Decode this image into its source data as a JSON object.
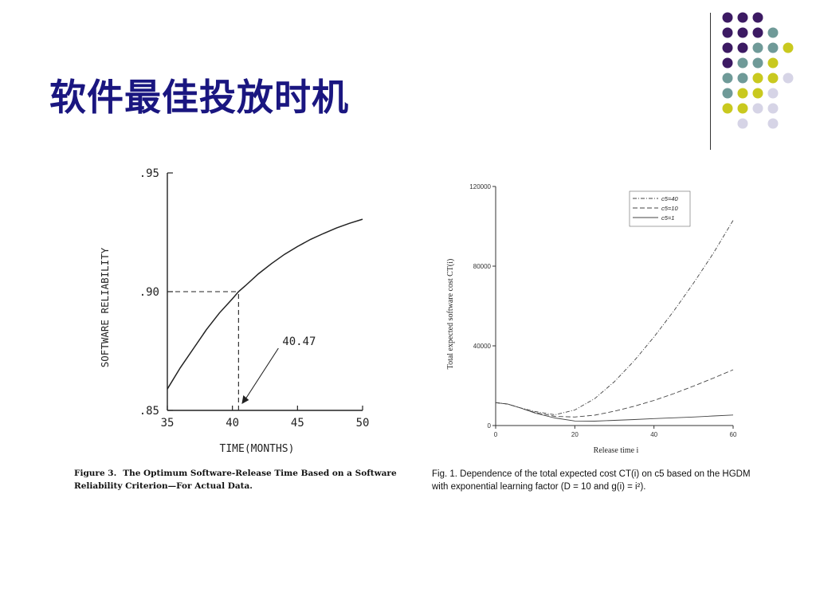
{
  "slide": {
    "title": "软件最佳投放时机"
  },
  "decoration": {
    "dot_grid": [
      [
        "#3c1a63",
        "#3c1a63",
        "#3c1a63",
        "",
        ""
      ],
      [
        "#3c1a63",
        "#3c1a63",
        "#3c1a63",
        "#6f9a98",
        ""
      ],
      [
        "#3c1a63",
        "#3c1a63",
        "#6f9a98",
        "#6f9a98",
        "#c9c91f"
      ],
      [
        "#3c1a63",
        "#6f9a98",
        "#6f9a98",
        "#c9c91f",
        ""
      ],
      [
        "#6f9a98",
        "#6f9a98",
        "#c9c91f",
        "#c9c91f",
        "#d6d4e6"
      ],
      [
        "#6f9a98",
        "#c9c91f",
        "#c9c91f",
        "#d6d4e6",
        ""
      ],
      [
        "#c9c91f",
        "#c9c91f",
        "#d6d4e6",
        "#d6d4e6",
        ""
      ],
      [
        "",
        "#d6d4e6",
        "",
        "#d6d4e6",
        ""
      ]
    ]
  },
  "figure3": {
    "caption_label": "Figure 3.",
    "caption_text": "The Optimum Software-Release Time Based on a Software Reliability Criterion—For Actual Data."
  },
  "figure1": {
    "caption_label": "Fig. 1.",
    "caption_text": "Dependence of the total expected cost CT(i) on c5 based on the HGDM with exponential learning factor (D = 10 and g(i) = i²)."
  },
  "chart_data": [
    {
      "type": "line",
      "xlabel": "TIME(MONTHS)",
      "ylabel": "SOFTWARE RELIABILITY",
      "xlim": [
        35,
        50
      ],
      "ylim": [
        0.85,
        0.95
      ],
      "x_ticks": [
        35,
        40,
        45,
        50
      ],
      "x_tick_labels": [
        "35",
        "40",
        "45",
        "50"
      ],
      "y_ticks": [
        0.85,
        0.9,
        0.95
      ],
      "y_tick_labels": [
        ".85",
        ".90",
        ".95"
      ],
      "series": [
        {
          "x": [
            35,
            36,
            37,
            38,
            39,
            40,
            40.47,
            41,
            42,
            43,
            44,
            45,
            46,
            47,
            48,
            49,
            50
          ],
          "values": [
            0.859,
            0.868,
            0.876,
            0.884,
            0.891,
            0.897,
            0.9,
            0.9025,
            0.9075,
            0.9118,
            0.9157,
            0.919,
            0.922,
            0.9245,
            0.9268,
            0.9288,
            0.9305
          ]
        }
      ],
      "annotations": [
        {
          "text": "40.47",
          "x": 40.47,
          "y": 0.9
        }
      ],
      "reference_lines": [
        {
          "type": "horizontal",
          "y": 0.9,
          "x_from": 35,
          "x_to": 40.47
        },
        {
          "type": "vertical",
          "x": 40.47,
          "y_from": 0.85,
          "y_to": 0.9
        }
      ],
      "grid": false
    },
    {
      "type": "line",
      "xlabel": "Release time  i",
      "ylabel": "Total expected software cost CT(i)",
      "xlim": [
        0,
        60
      ],
      "ylim": [
        0,
        120000
      ],
      "x_ticks": [
        0,
        20,
        40,
        60
      ],
      "x_tick_labels": [
        "0",
        "20",
        "40",
        "60"
      ],
      "y_ticks": [
        0,
        40000,
        80000,
        120000
      ],
      "y_tick_labels": [
        "0",
        "40000",
        "80000",
        "120000"
      ],
      "legend_position": "top-right",
      "grid": false,
      "x": [
        0,
        3,
        6,
        10,
        15,
        20,
        25,
        30,
        35,
        40,
        45,
        50,
        55,
        60
      ],
      "series": [
        {
          "name": "c5=40",
          "style": "dash-dot",
          "values": [
            11500,
            10800,
            9000,
            7000,
            5400,
            7800,
            13500,
            22000,
            32500,
            44500,
            57500,
            71500,
            86500,
            103000
          ]
        },
        {
          "name": "c5=10",
          "style": "dashed",
          "values": [
            11500,
            10800,
            9000,
            6500,
            4600,
            4300,
            5200,
            7200,
            9700,
            12600,
            16000,
            19800,
            23800,
            28000
          ]
        },
        {
          "name": "c5=1",
          "style": "solid",
          "values": [
            11500,
            10800,
            9000,
            6200,
            3800,
            2300,
            2200,
            2600,
            3000,
            3500,
            3900,
            4300,
            4800,
            5300
          ]
        }
      ]
    }
  ]
}
